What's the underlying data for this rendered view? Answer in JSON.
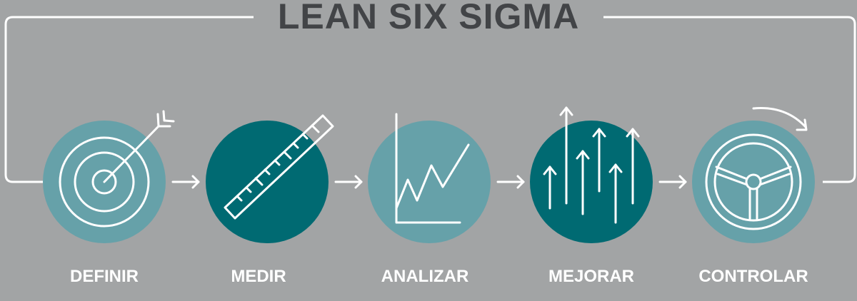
{
  "title": "LEAN SIX SIGMA",
  "steps": [
    {
      "label": "DEFINIR",
      "icon": "target-icon",
      "color": "#66a1a9"
    },
    {
      "label": "MEDIR",
      "icon": "ruler-icon",
      "color": "#006a72"
    },
    {
      "label": "ANALIZAR",
      "icon": "line-chart-icon",
      "color": "#66a1a9"
    },
    {
      "label": "MEJORAR",
      "icon": "up-arrows-icon",
      "color": "#006a72"
    },
    {
      "label": "CONTROLAR",
      "icon": "steering-wheel-icon",
      "color": "#66a1a9"
    }
  ],
  "colors": {
    "background": "#a2a4a5",
    "title": "#424447",
    "light_circle": "#66a1a9",
    "dark_circle": "#006a72",
    "line": "#ffffff"
  }
}
